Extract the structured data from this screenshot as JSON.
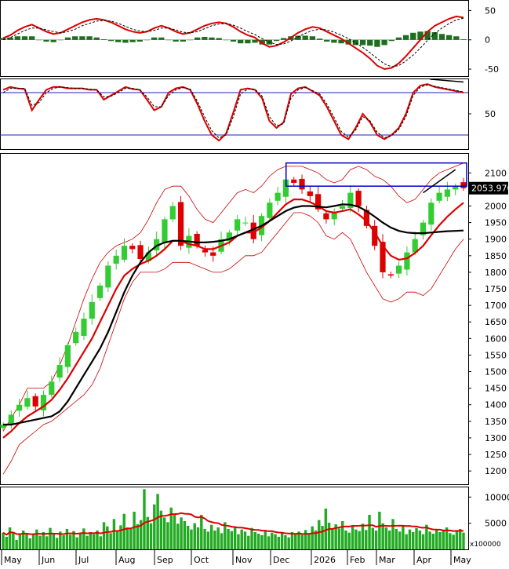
{
  "chart_data": [
    {
      "panel": "macd",
      "type": "line",
      "y_ticks": [
        "50",
        "0",
        "-50"
      ],
      "y_tick_values": [
        50,
        0,
        -50
      ],
      "ylim": [
        -62,
        68
      ],
      "series": [
        {
          "color": "#dd0000",
          "values": [
            3,
            8,
            16,
            22,
            26,
            20,
            14,
            10,
            12,
            18,
            24,
            30,
            34,
            36,
            34,
            30,
            24,
            18,
            14,
            12,
            14,
            20,
            24,
            20,
            14,
            10,
            12,
            18,
            24,
            28,
            30,
            28,
            22,
            14,
            8,
            4,
            -6,
            -12,
            -10,
            -4,
            4,
            12,
            18,
            22,
            20,
            14,
            8,
            2,
            -6,
            -14,
            -22,
            -32,
            -44,
            -50,
            -48,
            -40,
            -28,
            -14,
            0,
            14,
            24,
            30,
            36,
            40,
            38
          ]
        },
        {
          "color": "#000000",
          "style": "dashed",
          "values": [
            0,
            4,
            10,
            16,
            20,
            20,
            17,
            14,
            12,
            14,
            18,
            24,
            28,
            32,
            33,
            32,
            28,
            23,
            18,
            15,
            14,
            16,
            20,
            20,
            17,
            13,
            12,
            14,
            19,
            24,
            27,
            28,
            25,
            20,
            14,
            9,
            2,
            -4,
            -8,
            -7,
            -2,
            5,
            11,
            16,
            18,
            17,
            13,
            8,
            2,
            -5,
            -13,
            -22,
            -32,
            -41,
            -46,
            -44,
            -36,
            -26,
            -14,
            -1,
            11,
            20,
            28,
            34,
            37
          ]
        }
      ],
      "histogram": [
        3,
        4,
        6,
        6,
        6,
        0,
        -3,
        -4,
        0,
        4,
        6,
        6,
        6,
        4,
        1,
        -2,
        -4,
        -5,
        -4,
        -3,
        0,
        4,
        4,
        0,
        -3,
        -3,
        0,
        4,
        5,
        4,
        3,
        0,
        -3,
        -6,
        -6,
        -5,
        -8,
        -8,
        -2,
        3,
        6,
        7,
        7,
        6,
        2,
        -3,
        -5,
        -6,
        -8,
        -9,
        -9,
        -10,
        -12,
        -9,
        -2,
        4,
        8,
        12,
        14,
        15,
        13,
        10,
        8,
        6,
        1
      ]
    },
    {
      "panel": "stochastic",
      "type": "line",
      "y_ticks": [
        "50"
      ],
      "y_tick_values": [
        50
      ],
      "ylim": [
        0,
        100
      ],
      "reference_lines": [
        80,
        20
      ],
      "series": [
        {
          "color": "#dd0000",
          "values": [
            84,
            88,
            86,
            85,
            55,
            70,
            84,
            88,
            88,
            86,
            86,
            86,
            84,
            84,
            70,
            76,
            82,
            88,
            85,
            84,
            70,
            55,
            60,
            80,
            86,
            88,
            84,
            64,
            40,
            20,
            12,
            22,
            52,
            84,
            86,
            84,
            72,
            40,
            30,
            38,
            78,
            86,
            88,
            82,
            76,
            60,
            40,
            20,
            14,
            30,
            50,
            38,
            20,
            14,
            20,
            30,
            50,
            80,
            90,
            92,
            88,
            86,
            84,
            82,
            80
          ]
        },
        {
          "color": "#000000",
          "style": "dashed",
          "values": [
            80,
            86,
            86,
            86,
            62,
            66,
            80,
            86,
            88,
            87,
            86,
            86,
            85,
            84,
            74,
            75,
            80,
            86,
            86,
            84,
            74,
            60,
            60,
            76,
            84,
            87,
            85,
            68,
            46,
            26,
            16,
            20,
            46,
            78,
            85,
            85,
            75,
            46,
            33,
            36,
            72,
            84,
            87,
            83,
            78,
            64,
            45,
            25,
            17,
            27,
            46,
            40,
            24,
            16,
            19,
            28,
            46,
            76,
            88,
            91,
            89,
            87,
            85,
            83,
            81
          ]
        }
      ]
    },
    {
      "panel": "price",
      "type": "candlestick",
      "y_ticks": [
        "2100",
        "2050",
        "2000",
        "1950",
        "1900",
        "1850",
        "1800",
        "1750",
        "1700",
        "1650",
        "1600",
        "1550",
        "1500",
        "1450",
        "1400",
        "1350",
        "1300",
        "1250",
        "1200"
      ],
      "y_tick_values": [
        2100,
        2050,
        2000,
        1950,
        1900,
        1850,
        1800,
        1750,
        1700,
        1650,
        1600,
        1550,
        1500,
        1450,
        1400,
        1350,
        1300,
        1250,
        1200
      ],
      "ylim": [
        1160,
        2160
      ],
      "last_price_label": "2053.970",
      "last_price": 2053.97,
      "x_ticks": [
        "May",
        "Jun",
        "Jul",
        "Aug",
        "Sep",
        "Oct",
        "Nov",
        "Dec",
        "2026",
        "Feb",
        "Mar",
        "Apr",
        "May"
      ],
      "close": [
        1340,
        1370,
        1400,
        1420,
        1395,
        1430,
        1470,
        1520,
        1580,
        1620,
        1660,
        1710,
        1760,
        1820,
        1850,
        1880,
        1870,
        1840,
        1860,
        1900,
        1960,
        2000,
        1880,
        1910,
        1880,
        1860,
        1850,
        1900,
        1920,
        1960,
        1950,
        1900,
        1970,
        2010,
        2040,
        2080,
        2070,
        2050,
        2030,
        1990,
        1960,
        1980,
        2000,
        2040,
        2000,
        1940,
        1880,
        1800,
        1790,
        1820,
        1860,
        1900,
        1950,
        2010,
        2040,
        2050,
        2060,
        2054
      ],
      "ema_red": [
        1300,
        1320,
        1345,
        1365,
        1380,
        1395,
        1415,
        1445,
        1480,
        1520,
        1560,
        1600,
        1650,
        1700,
        1750,
        1790,
        1810,
        1825,
        1835,
        1850,
        1870,
        1895,
        1895,
        1885,
        1880,
        1870,
        1870,
        1880,
        1890,
        1910,
        1920,
        1920,
        1935,
        1955,
        1980,
        2005,
        2020,
        2020,
        2012,
        2000,
        1985,
        1980,
        1985,
        1990,
        1975,
        1955,
        1920,
        1880,
        1850,
        1838,
        1842,
        1858,
        1880,
        1912,
        1942,
        1968,
        1990,
        2010
      ],
      "sma_black": [
        1340,
        1340,
        1345,
        1350,
        1355,
        1360,
        1365,
        1380,
        1410,
        1450,
        1490,
        1530,
        1570,
        1620,
        1680,
        1740,
        1790,
        1830,
        1860,
        1880,
        1890,
        1895,
        1895,
        1893,
        1890,
        1890,
        1892,
        1895,
        1900,
        1910,
        1920,
        1930,
        1940,
        1955,
        1970,
        1985,
        1995,
        2000,
        2000,
        1998,
        1996,
        2000,
        2005,
        2004,
        1998,
        1985,
        1968,
        1950,
        1935,
        1925,
        1920,
        1918,
        1918,
        1920,
        1922,
        1924,
        1925,
        1926
      ],
      "bollinger_upper": [
        1320,
        1360,
        1400,
        1450,
        1450,
        1450,
        1470,
        1520,
        1580,
        1650,
        1720,
        1780,
        1830,
        1860,
        1880,
        1890,
        1900,
        1920,
        1960,
        2010,
        2050,
        2060,
        2060,
        2030,
        1990,
        1960,
        1950,
        1980,
        2010,
        2040,
        2050,
        2040,
        2060,
        2090,
        2110,
        2120,
        2120,
        2120,
        2110,
        2100,
        2080,
        2070,
        2080,
        2110,
        2120,
        2110,
        2090,
        2080,
        2060,
        2030,
        2010,
        2020,
        2050,
        2080,
        2100,
        2110,
        2120,
        2130
      ],
      "bollinger_lower": [
        1190,
        1230,
        1280,
        1300,
        1320,
        1340,
        1350,
        1370,
        1390,
        1410,
        1430,
        1460,
        1510,
        1580,
        1650,
        1720,
        1770,
        1800,
        1800,
        1800,
        1810,
        1830,
        1830,
        1830,
        1820,
        1810,
        1800,
        1800,
        1810,
        1830,
        1850,
        1850,
        1860,
        1890,
        1920,
        1950,
        1980,
        1980,
        1970,
        1950,
        1910,
        1900,
        1920,
        1900,
        1850,
        1800,
        1760,
        1720,
        1710,
        1720,
        1740,
        1740,
        1730,
        1750,
        1790,
        1830,
        1870,
        1900
      ],
      "highlight_box": [
        2130,
        2060
      ]
    },
    {
      "panel": "volume",
      "type": "bar",
      "y_ticks": [
        "10000",
        "5000"
      ],
      "y_tick_values": [
        10000,
        5000
      ],
      "ylim": [
        0,
        12000
      ],
      "unit_label": "x100000",
      "volume": [
        3200,
        2400,
        4200,
        3100,
        1800,
        2800,
        3600,
        3000,
        2100,
        2900,
        3800,
        2600,
        3300,
        2500,
        4100,
        3000,
        2200,
        3400,
        2700,
        3900,
        2800,
        3500,
        2300,
        3100,
        4000,
        2600,
        3300,
        2900,
        3600,
        2500,
        5200,
        4400,
        3100,
        5800,
        3500,
        4600,
        6800,
        4200,
        3900,
        7200,
        4800,
        5600,
        11500,
        6200,
        5000,
        8600,
        10600,
        7400,
        6100,
        5200,
        8000,
        6800,
        4900,
        6100,
        5400,
        4500,
        3800,
        5000,
        4200,
        6600,
        3900,
        3400,
        4700,
        3600,
        4200,
        3100,
        5200,
        3900,
        3500,
        4400,
        2900,
        3800,
        3400,
        2600,
        4100,
        3300,
        3000,
        2700,
        3600,
        2500,
        3200,
        2900,
        2400,
        3100,
        2700,
        2300,
        3300,
        2900,
        3400,
        2800,
        3700,
        3100,
        4400,
        3600,
        5600,
        4500,
        7800,
        5100,
        3900,
        4800,
        4000,
        5400,
        3600,
        3200,
        4600,
        3800,
        3500,
        4900,
        3700,
        6600,
        4100,
        3600,
        7200,
        5000,
        4200,
        3600,
        5800,
        3900,
        3400,
        4500,
        2900,
        3800,
        3300,
        4100,
        3600,
        2900,
        4700,
        3400,
        3000,
        3800,
        3300,
        3600,
        4200,
        3100,
        2800,
        3500,
        3900,
        3200
      ]
    }
  ]
}
